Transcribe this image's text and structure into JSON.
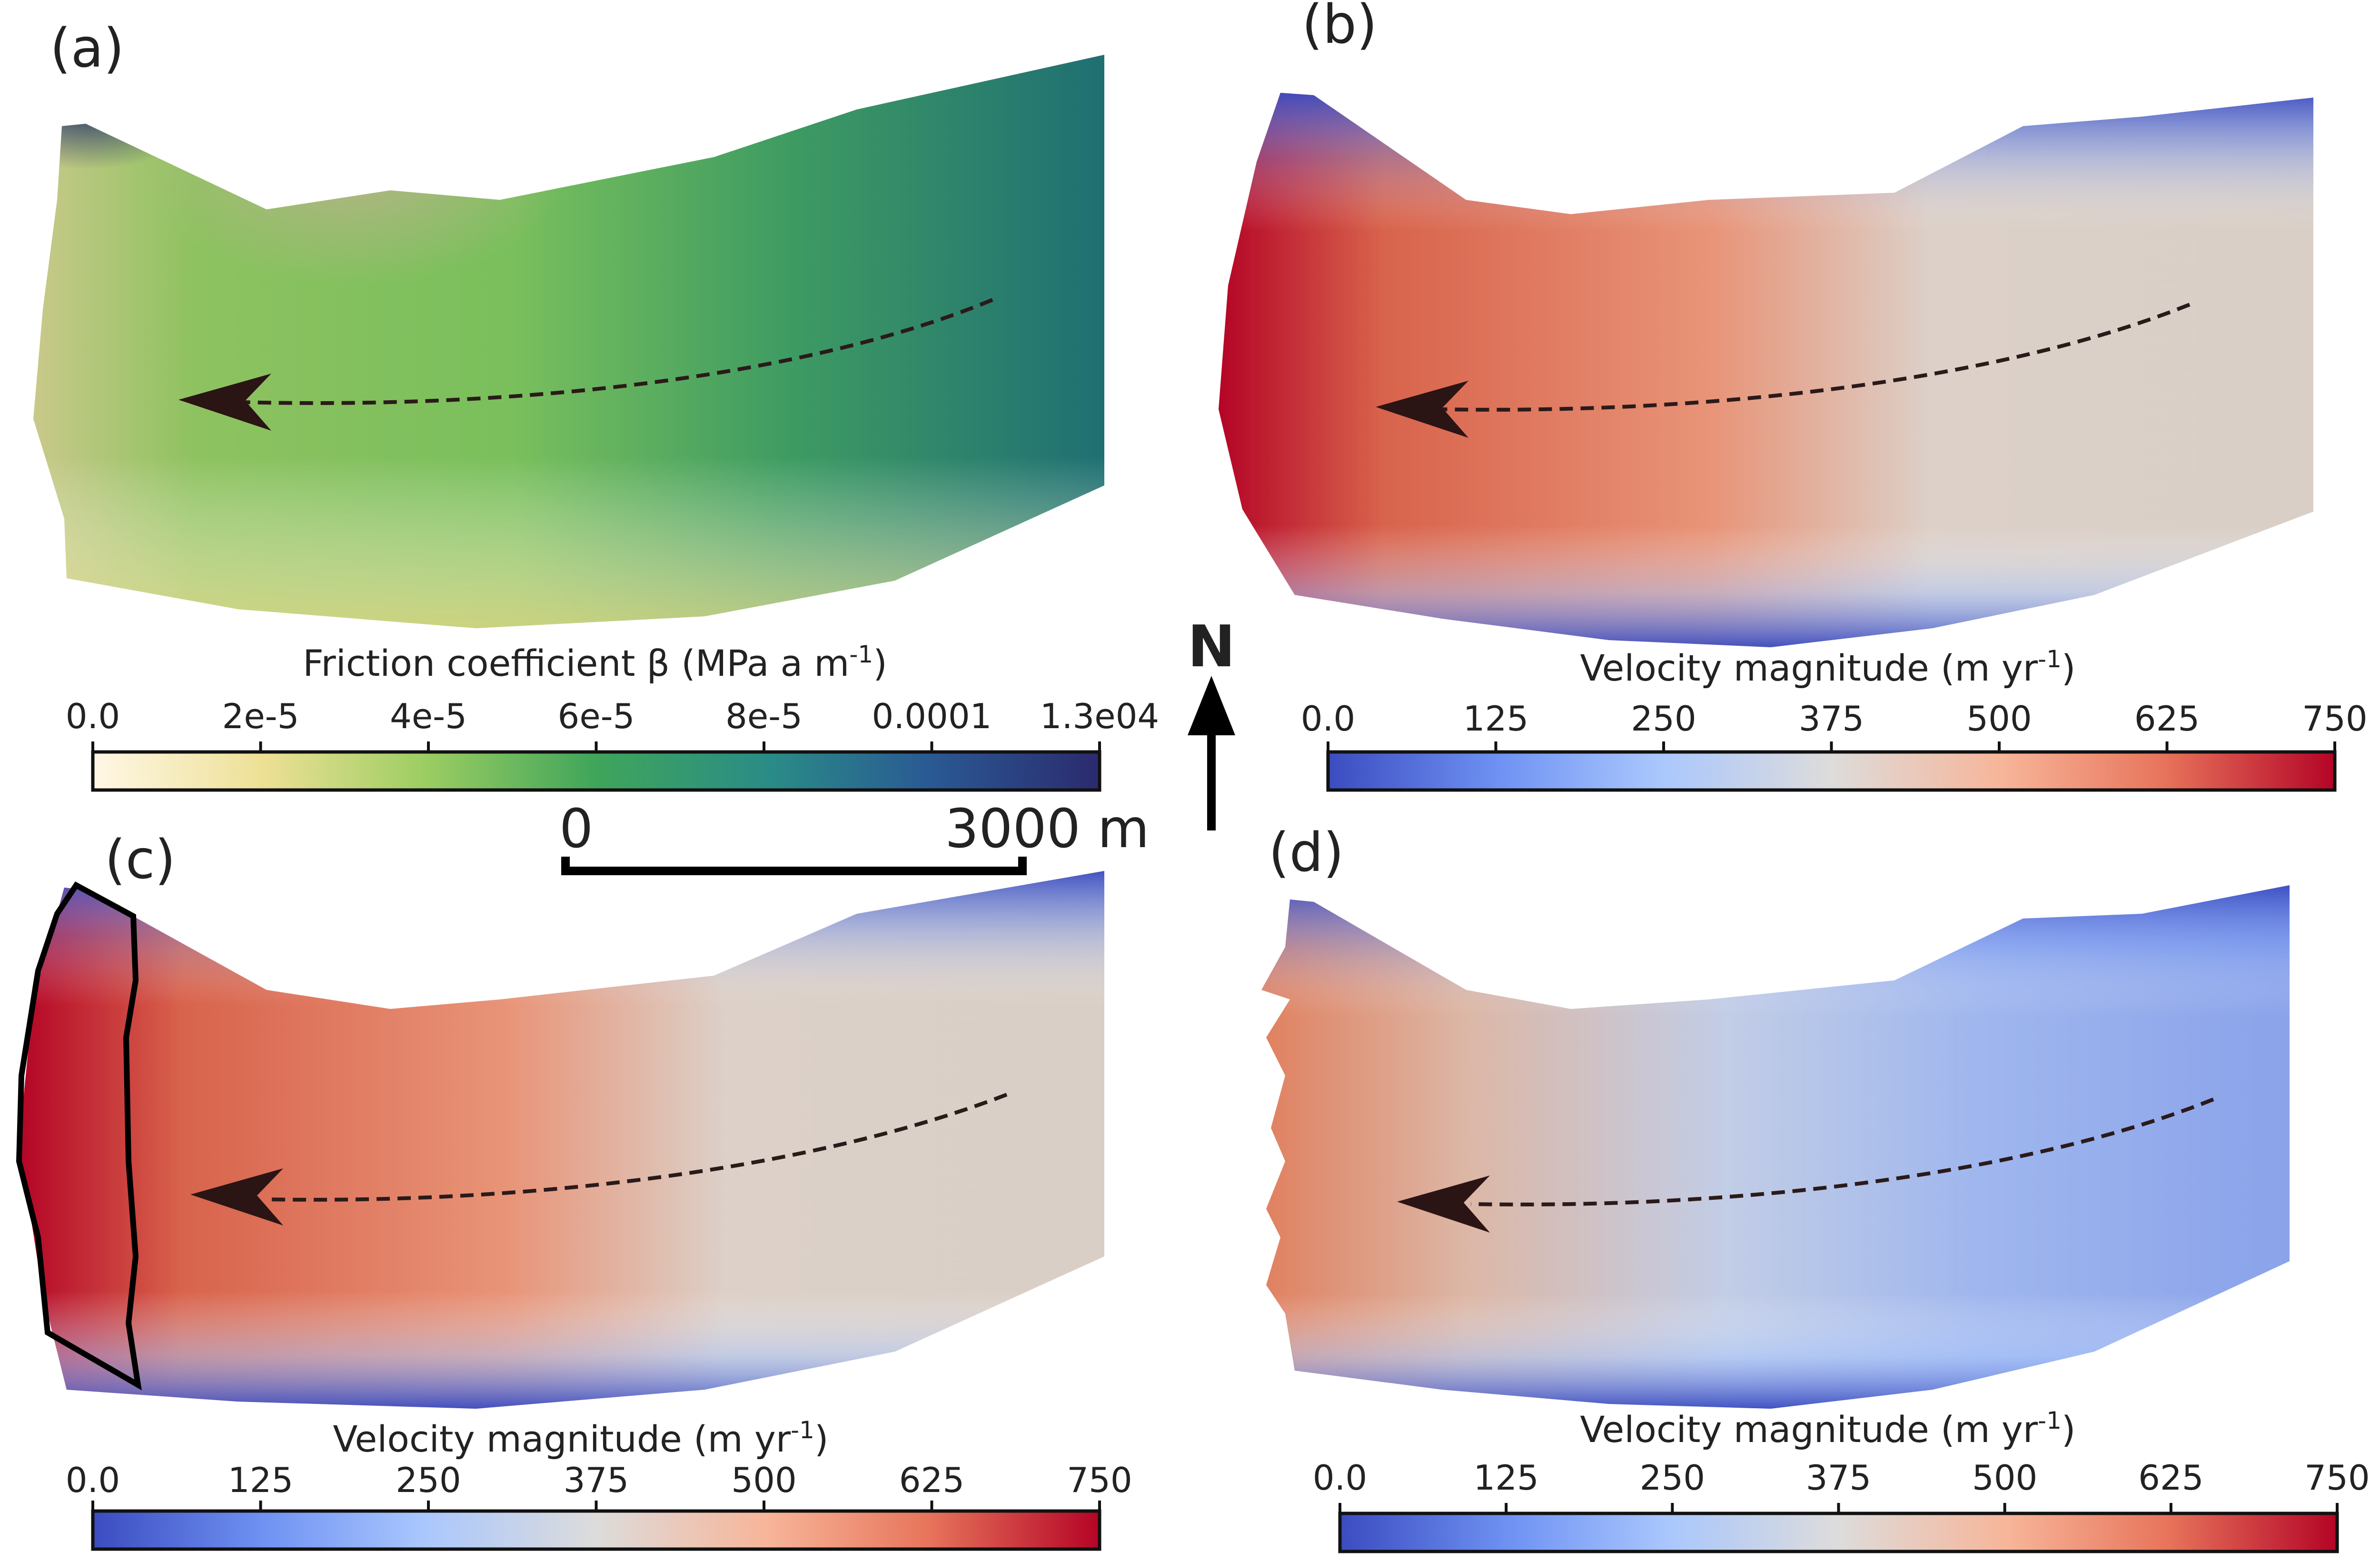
{
  "panels": [
    {
      "label": "(a)",
      "colorbar": {
        "title": "Friction coefficient β (MPa a m",
        "title_sup": "-1",
        "title_end": ")",
        "ticks": [
          "0.0",
          "2e-5",
          "4e-5",
          "6e-5",
          "8e-5",
          "0.0001",
          "1.3e04"
        ],
        "colormap": "yellow-green-blue"
      }
    },
    {
      "label": "(b)",
      "colorbar": {
        "title": "Velocity magnitude (m yr",
        "title_sup": "-1",
        "title_end": ")",
        "ticks": [
          "0.0",
          "125",
          "250",
          "375",
          "500",
          "625",
          "750"
        ],
        "colormap": "cool-warm"
      }
    },
    {
      "label": "(c)",
      "colorbar": {
        "title": "Velocity magnitude (m yr",
        "title_sup": "-1",
        "title_end": ")",
        "ticks": [
          "0.0",
          "125",
          "250",
          "375",
          "500",
          "625",
          "750"
        ],
        "colormap": "cool-warm"
      }
    },
    {
      "label": "(d)",
      "colorbar": {
        "title": "Velocity magnitude (m yr",
        "title_sup": "-1",
        "title_end": ")",
        "ticks": [
          "0.0",
          "125",
          "250",
          "375",
          "500",
          "625",
          "750"
        ],
        "colormap": "cool-warm"
      }
    }
  ],
  "north_arrow": {
    "label": "N",
    "icon": "north-arrow-icon"
  },
  "scale_bar": {
    "start_label": "0",
    "end_label": "3000 m"
  },
  "flow_arrow": {
    "icon": "flow-direction-arrow-icon"
  },
  "colors": {
    "cool_warm": [
      "#3b4cc0",
      "#7396f5",
      "#aac7fd",
      "#dddcdb",
      "#f7b599",
      "#e7745b",
      "#b40426"
    ],
    "friction": [
      "#fff7e6",
      "#e8df8a",
      "#7fc55e",
      "#3a9e57",
      "#2a8c86",
      "#2a4f8f",
      "#2b2a6e"
    ]
  }
}
